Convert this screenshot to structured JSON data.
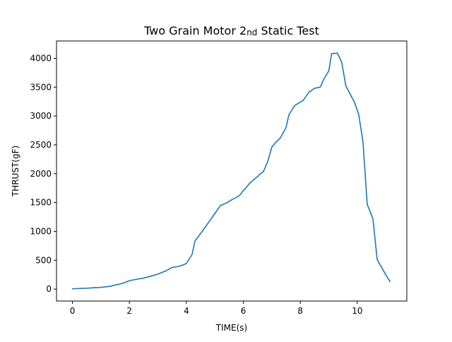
{
  "chart_data": {
    "type": "line",
    "title_prefix": "Two Grain Motor 2",
    "title_sub": "nd",
    "title_suffix": " Static Test",
    "xlabel": "TIME(s)",
    "ylabel": "THRUST(gF)",
    "xlim": [
      -0.56,
      11.74
    ],
    "ylim": [
      -207,
      4300
    ],
    "xticks": [
      0,
      2,
      4,
      6,
      8,
      10
    ],
    "yticks": [
      0,
      500,
      1000,
      1500,
      2000,
      2500,
      3000,
      3500,
      4000
    ],
    "grid": false,
    "line_color": "#1f77b4",
    "series": [
      {
        "x": [
          0,
          0.5,
          1.0,
          1.35,
          1.5,
          1.65,
          1.8,
          1.9,
          2.0,
          2.2,
          2.5,
          2.8,
          3.0,
          3.3,
          3.5,
          3.7,
          3.9,
          4.0,
          4.1,
          4.2,
          4.3,
          4.45,
          4.6,
          4.8,
          5.0,
          5.2,
          5.4,
          5.6,
          5.8,
          5.9,
          6.0,
          6.1,
          6.2,
          6.3,
          6.4,
          6.5,
          6.6,
          6.7,
          6.85,
          7.0,
          7.15,
          7.3,
          7.5,
          7.6,
          7.8,
          8.0,
          8.1,
          8.3,
          8.5,
          8.7,
          8.85,
          9.0,
          9.1,
          9.3,
          9.45,
          9.6,
          9.75,
          9.9,
          10.05,
          10.2,
          10.35,
          10.55,
          10.7,
          10.85,
          11.0,
          11.15
        ],
        "y": [
          5,
          15,
          30,
          50,
          70,
          85,
          105,
          125,
          145,
          165,
          190,
          230,
          260,
          320,
          375,
          390,
          420,
          445,
          520,
          600,
          830,
          930,
          1030,
          1170,
          1310,
          1450,
          1490,
          1550,
          1600,
          1640,
          1710,
          1760,
          1820,
          1870,
          1910,
          1950,
          2000,
          2030,
          2200,
          2460,
          2550,
          2620,
          2800,
          3020,
          3180,
          3240,
          3270,
          3410,
          3480,
          3500,
          3660,
          3780,
          4080,
          4090,
          3940,
          3520,
          3380,
          3240,
          3030,
          2560,
          1470,
          1220,
          510,
          380,
          250,
          130
        ]
      }
    ]
  }
}
